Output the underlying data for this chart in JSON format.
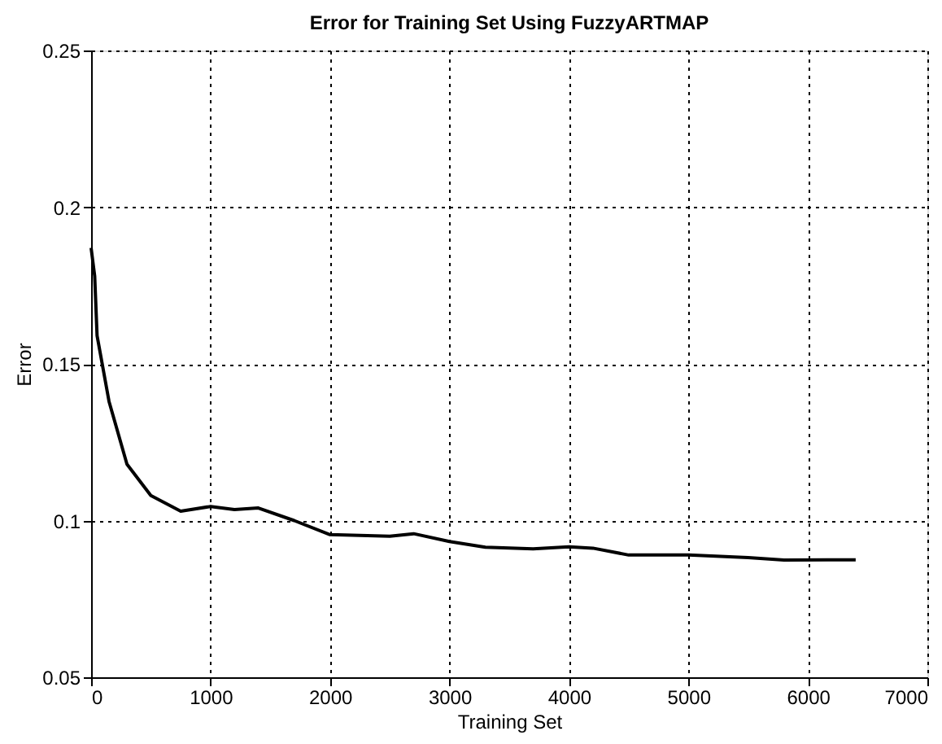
{
  "chart_data": {
    "type": "line",
    "title": "Error for Training Set Using FuzzyARTMAP",
    "xlabel": "Training Set",
    "ylabel": "Error",
    "x": [
      0,
      30,
      50,
      150,
      300,
      500,
      750,
      1000,
      1200,
      1400,
      1700,
      2000,
      2500,
      2700,
      3000,
      3300,
      3700,
      4000,
      4200,
      4500,
      5000,
      5500,
      5800,
      6400
    ],
    "series": [
      {
        "color": "#000000",
        "values": [
          0.187,
          0.178,
          0.159,
          0.138,
          0.118,
          0.108,
          0.103,
          0.1045,
          0.1035,
          0.104,
          0.1,
          0.0955,
          0.095,
          0.0958,
          0.0933,
          0.0915,
          0.091,
          0.0916,
          0.0912,
          0.089,
          0.089,
          0.0882,
          0.0874,
          0.0875
        ]
      }
    ],
    "xlim": [
      0,
      7000
    ],
    "xticks": [
      0,
      1000,
      2000,
      3000,
      4000,
      5000,
      6000,
      7000
    ],
    "ylim": [
      0.05,
      0.25
    ],
    "yticks": [
      0.05,
      0.1,
      0.15,
      0.2,
      0.25
    ],
    "grid": true,
    "line_style": "solid",
    "marker": "none",
    "legend": false
  }
}
